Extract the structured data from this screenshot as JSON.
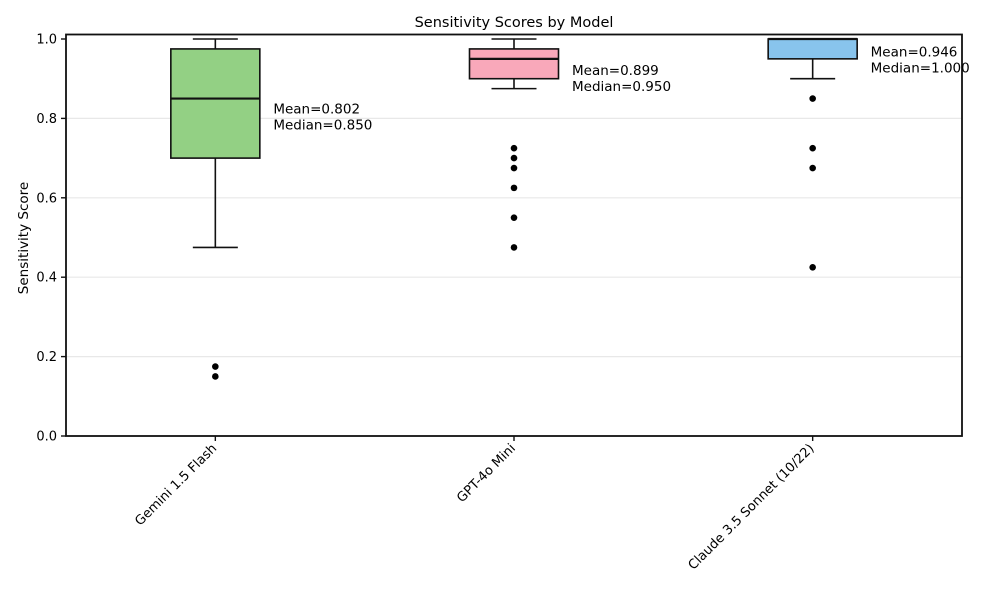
{
  "figure": {
    "background": "#ffffff"
  },
  "chart_data": {
    "type": "boxplot",
    "title": "Sensitivity Scores by Model",
    "ylabel": "Sensitivity Score",
    "xlabel": "",
    "ylim": [
      0.0,
      1.01
    ],
    "yticks": [
      0.0,
      0.2,
      0.4,
      0.6,
      0.8,
      1.0
    ],
    "ytick_labels": [
      "0.0",
      "0.2",
      "0.4",
      "0.6",
      "0.8",
      "1.0"
    ],
    "grid_ticks": [
      0.2,
      0.4,
      0.6,
      0.8
    ],
    "grid": "horizontal light-gray lines",
    "legend": "none",
    "grid_color": "#e8e8e8",
    "edge_color": "#111111",
    "categories": [
      "Gemini 1.5 Flash",
      "GPT-4o Mini",
      "Claude 3.5 Sonnet (10/22)"
    ],
    "series": [
      {
        "model": "Gemini 1.5 Flash",
        "fill_color": "#93d084",
        "whisker_low": 0.475,
        "q1": 0.7,
        "median": 0.85,
        "q3": 0.975,
        "whisker_high": 1.0,
        "mean": 0.802,
        "outliers": [
          0.175,
          0.15
        ],
        "annotation_lines": [
          "Mean=0.802",
          "Median=0.850"
        ]
      },
      {
        "model": "GPT-4o Mini",
        "fill_color": "#f9a8ba",
        "whisker_low": 0.875,
        "q1": 0.9,
        "median": 0.95,
        "q3": 0.975,
        "whisker_high": 1.0,
        "mean": 0.899,
        "outliers": [
          0.725,
          0.7,
          0.675,
          0.625,
          0.55,
          0.475
        ],
        "annotation_lines": [
          "Mean=0.899",
          "Median=0.950"
        ]
      },
      {
        "model": "Claude 3.5 Sonnet (10/22)",
        "fill_color": "#88c4ed",
        "whisker_low": 0.9,
        "q1": 0.95,
        "median": 1.0,
        "q3": 1.0,
        "whisker_high": 1.0,
        "mean": 0.946,
        "outliers": [
          0.85,
          0.725,
          0.675,
          0.425
        ],
        "annotation_lines": [
          "Mean=0.946",
          "Median=1.000"
        ]
      }
    ]
  }
}
